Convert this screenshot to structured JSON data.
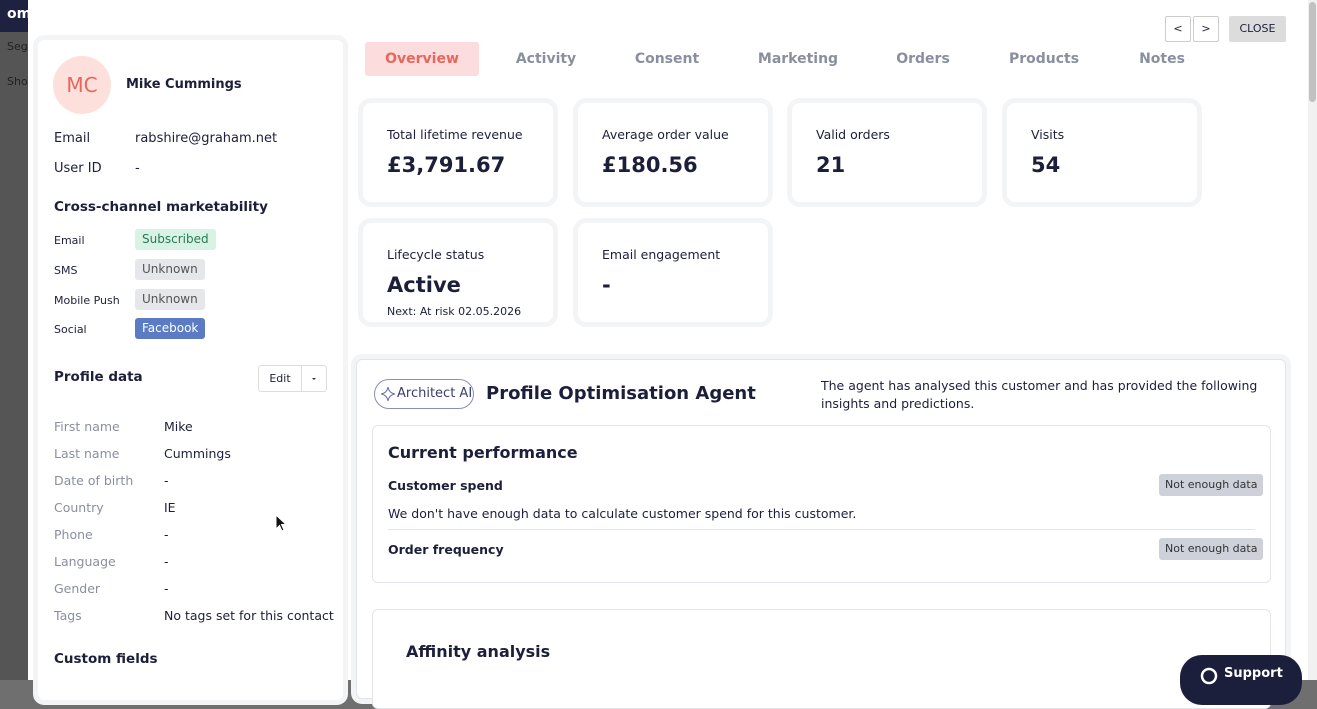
{
  "backdrop": {
    "logo": "om",
    "nav": [
      "Seg",
      "Sho"
    ]
  },
  "toolbar": {
    "prev": "<",
    "next": ">",
    "close": "CLOSE"
  },
  "profile": {
    "initials": "MC",
    "name": "Mike Cummings",
    "fields": [
      {
        "label": "Email",
        "value": "rabshire@graham.net"
      },
      {
        "label": "User ID",
        "value": "-"
      }
    ]
  },
  "marketability": {
    "title": "Cross-channel marketability",
    "channels": [
      {
        "channel": "Email",
        "status": "Subscribed"
      },
      {
        "channel": "SMS",
        "status": "Unknown"
      },
      {
        "channel": "Mobile Push",
        "status": "Unknown"
      },
      {
        "channel": "Social",
        "status": "Facebook"
      }
    ]
  },
  "profile_data": {
    "title": "Profile data",
    "edit": "Edit",
    "fields": [
      {
        "label": "First name",
        "value": "Mike"
      },
      {
        "label": "Last name",
        "value": "Cummings"
      },
      {
        "label": "Date of birth",
        "value": "-"
      },
      {
        "label": "Country",
        "value": "IE"
      },
      {
        "label": "Phone",
        "value": "-"
      },
      {
        "label": "Language",
        "value": "-"
      },
      {
        "label": "Gender",
        "value": "-"
      },
      {
        "label": "Tags",
        "value": "No tags set for this contact"
      }
    ]
  },
  "custom_fields": {
    "title": "Custom fields"
  },
  "tabs": [
    "Overview",
    "Activity",
    "Consent",
    "Marketing",
    "Orders",
    "Products",
    "Notes"
  ],
  "metrics": [
    {
      "label": "Total lifetime revenue",
      "value": "£3,791.67"
    },
    {
      "label": "Average order value",
      "value": "£180.56"
    },
    {
      "label": "Valid orders",
      "value": "21"
    },
    {
      "label": "Visits",
      "value": "54"
    },
    {
      "label": "Lifecycle status",
      "value": "Active",
      "note": "Next: At risk 02.05.2026"
    },
    {
      "label": "Email engagement",
      "value": "-"
    }
  ],
  "agent": {
    "badge": "Architect AI",
    "title": "Profile Optimisation Agent",
    "description": "The agent has analysed this customer and has provided the following insights and predictions.",
    "performance": {
      "title": "Current performance",
      "items": [
        {
          "name": "Customer spend",
          "status": "Not enough data",
          "detail": "We don't have enough data to calculate customer spend for this customer."
        },
        {
          "name": "Order frequency",
          "status": "Not enough data"
        }
      ]
    },
    "affinity": {
      "title": "Affinity analysis"
    }
  },
  "support": "Support"
}
